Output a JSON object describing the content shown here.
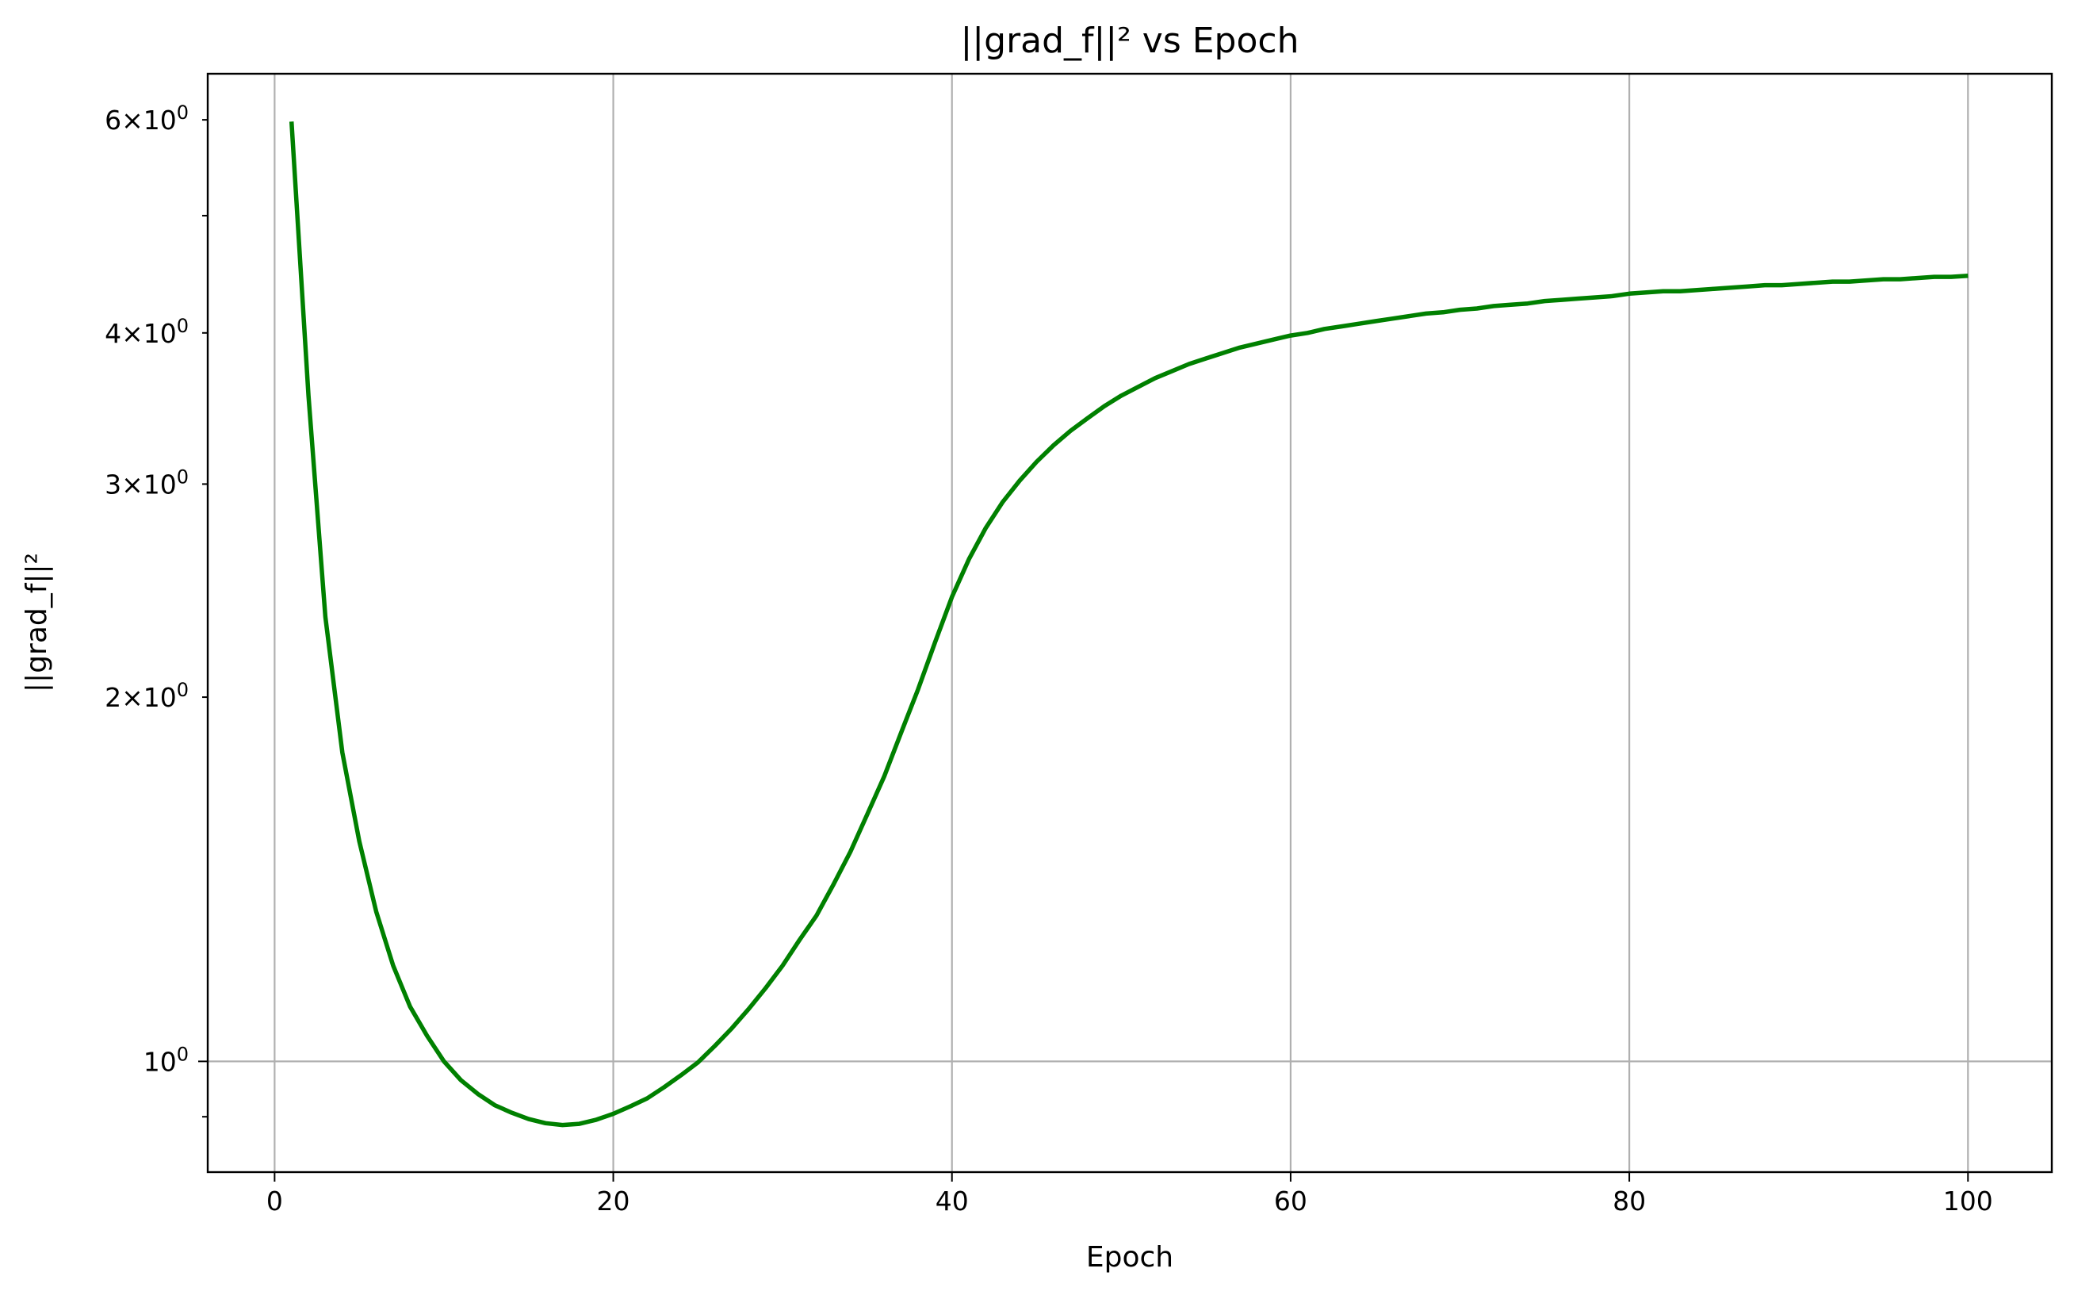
{
  "chart_data": {
    "type": "line",
    "title": "||grad_f||² vs Epoch",
    "xlabel": "Epoch",
    "ylabel": "||grad_f||²",
    "xlim": [
      -3.95,
      104.95
    ],
    "ylim": [
      0.81,
      6.55
    ],
    "yscale": "log",
    "grid": true,
    "x_ticks": [
      0,
      20,
      40,
      60,
      80,
      100
    ],
    "x_tick_labels": [
      "0",
      "20",
      "40",
      "60",
      "80",
      "100"
    ],
    "y_major_ticks": [
      1
    ],
    "y_major_tick_labels": [
      "10^0"
    ],
    "y_minor_ticks": [
      0.9,
      2,
      3,
      4,
      5,
      6
    ],
    "y_minor_tick_labels": [
      "",
      "2×10^0",
      "3×10^0",
      "4×10^0",
      "",
      "6×10^0"
    ],
    "series": [
      {
        "color": "#008000",
        "x": [
          1,
          2,
          3,
          4,
          5,
          6,
          7,
          8,
          9,
          10,
          11,
          12,
          13,
          14,
          15,
          16,
          17,
          18,
          19,
          20,
          21,
          22,
          23,
          24,
          25,
          26,
          27,
          28,
          29,
          30,
          31,
          32,
          33,
          34,
          35,
          36,
          37,
          38,
          39,
          40,
          41,
          42,
          43,
          44,
          45,
          46,
          47,
          48,
          49,
          50,
          51,
          52,
          53,
          54,
          55,
          56,
          57,
          58,
          59,
          60,
          61,
          62,
          63,
          64,
          65,
          66,
          67,
          68,
          69,
          70,
          71,
          72,
          73,
          74,
          75,
          76,
          77,
          78,
          79,
          80,
          81,
          82,
          83,
          84,
          85,
          86,
          87,
          88,
          89,
          90,
          91,
          92,
          93,
          94,
          95,
          96,
          97,
          98,
          99,
          100
        ],
        "y": [
          5.98,
          3.55,
          2.33,
          1.8,
          1.52,
          1.33,
          1.2,
          1.11,
          1.05,
          1.0,
          0.965,
          0.94,
          0.92,
          0.907,
          0.896,
          0.889,
          0.886,
          0.888,
          0.895,
          0.905,
          0.918,
          0.932,
          0.952,
          0.974,
          0.998,
          1.03,
          1.065,
          1.105,
          1.15,
          1.2,
          1.26,
          1.32,
          1.4,
          1.49,
          1.6,
          1.72,
          1.87,
          2.03,
          2.22,
          2.42,
          2.6,
          2.76,
          2.9,
          3.02,
          3.13,
          3.23,
          3.32,
          3.4,
          3.48,
          3.55,
          3.61,
          3.67,
          3.72,
          3.77,
          3.81,
          3.85,
          3.89,
          3.92,
          3.95,
          3.98,
          4.0,
          4.03,
          4.05,
          4.07,
          4.09,
          4.11,
          4.13,
          4.15,
          4.16,
          4.18,
          4.19,
          4.21,
          4.22,
          4.23,
          4.25,
          4.26,
          4.27,
          4.28,
          4.29,
          4.31,
          4.32,
          4.33,
          4.33,
          4.34,
          4.35,
          4.36,
          4.37,
          4.38,
          4.38,
          4.39,
          4.4,
          4.41,
          4.41,
          4.42,
          4.43,
          4.43,
          4.44,
          4.45,
          4.45,
          4.46
        ]
      }
    ]
  }
}
